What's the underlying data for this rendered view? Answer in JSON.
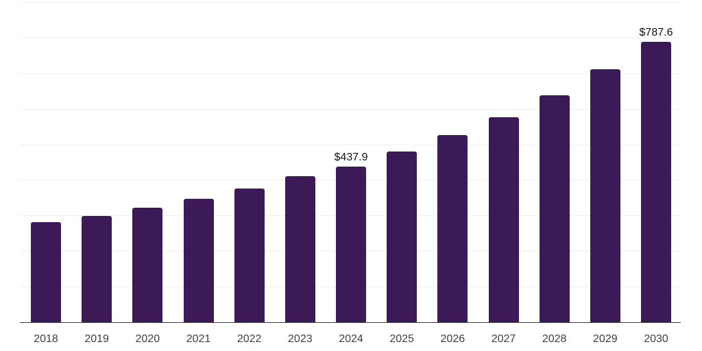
{
  "chart_data": {
    "type": "bar",
    "title": "",
    "xlabel": "",
    "ylabel": "",
    "categories": [
      "2018",
      "2019",
      "2020",
      "2021",
      "2022",
      "2023",
      "2024",
      "2025",
      "2026",
      "2027",
      "2028",
      "2029",
      "2030"
    ],
    "values": [
      281.0,
      298.0,
      321.0,
      346.0,
      375.0,
      411.0,
      437.9,
      479.0,
      526.0,
      577.0,
      638.0,
      711.0,
      787.6
    ],
    "data_labels": {
      "2024": "$437.9",
      "2030": "$787.6"
    },
    "ylim": [
      0,
      900
    ],
    "grid_interval": 100,
    "grid": true,
    "legend": false,
    "colors": {
      "bar": "#3c1a57",
      "gridline": "#efefef",
      "axis": "#3a3a3a",
      "value_label": "#121212",
      "tick_label": "#3d3d3d",
      "background": "#ffffff"
    }
  }
}
